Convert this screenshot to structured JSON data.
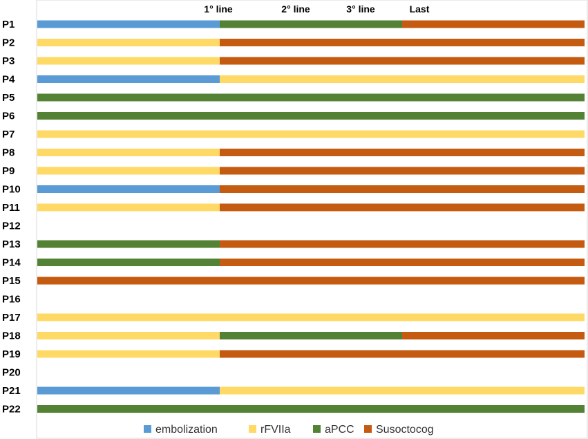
{
  "chart_data": {
    "type": "bar",
    "orientation": "horizontal",
    "stacked": true,
    "line_headers": [
      "1° line",
      "2° line",
      "3° line",
      "Last"
    ],
    "categories": [
      "P1",
      "P2",
      "P3",
      "P4",
      "P5",
      "P6",
      "P7",
      "P8",
      "P9",
      "P10",
      "P11",
      "P12",
      "P13",
      "P14",
      "P15",
      "P16",
      "P17",
      "P18",
      "P19",
      "P20",
      "P21",
      "P22"
    ],
    "treatments": [
      {
        "key": "embolization",
        "name": "embolization",
        "color": "#5b9bd5"
      },
      {
        "key": "rFVIIa",
        "name": "rFVIIa",
        "color": "#ffd966"
      },
      {
        "key": "aPCC",
        "name": "aPCC",
        "color": "#548235"
      },
      {
        "key": "Susoctocog",
        "name": "Susoctocog",
        "color": "#c55a11"
      }
    ],
    "lines_total": 3,
    "rows": [
      {
        "category": "P1",
        "segments": [
          {
            "treatment": "embolization",
            "lines": 1
          },
          {
            "treatment": "aPCC",
            "lines": 1
          },
          {
            "treatment": "Susoctocog",
            "lines": 1
          }
        ]
      },
      {
        "category": "P2",
        "segments": [
          {
            "treatment": "rFVIIa",
            "lines": 1
          },
          {
            "treatment": "Susoctocog",
            "lines": 2
          }
        ]
      },
      {
        "category": "P3",
        "segments": [
          {
            "treatment": "rFVIIa",
            "lines": 1
          },
          {
            "treatment": "Susoctocog",
            "lines": 2
          }
        ]
      },
      {
        "category": "P4",
        "segments": [
          {
            "treatment": "embolization",
            "lines": 1
          },
          {
            "treatment": "rFVIIa",
            "lines": 2
          }
        ]
      },
      {
        "category": "P5",
        "segments": [
          {
            "treatment": "aPCC",
            "lines": 3
          }
        ]
      },
      {
        "category": "P6",
        "segments": [
          {
            "treatment": "aPCC",
            "lines": 3
          }
        ]
      },
      {
        "category": "P7",
        "segments": [
          {
            "treatment": "rFVIIa",
            "lines": 3
          }
        ]
      },
      {
        "category": "P8",
        "segments": [
          {
            "treatment": "rFVIIa",
            "lines": 1
          },
          {
            "treatment": "Susoctocog",
            "lines": 2
          }
        ]
      },
      {
        "category": "P9",
        "segments": [
          {
            "treatment": "rFVIIa",
            "lines": 1
          },
          {
            "treatment": "Susoctocog",
            "lines": 2
          }
        ]
      },
      {
        "category": "P10",
        "segments": [
          {
            "treatment": "embolization",
            "lines": 1
          },
          {
            "treatment": "Susoctocog",
            "lines": 2
          }
        ]
      },
      {
        "category": "P11",
        "segments": [
          {
            "treatment": "rFVIIa",
            "lines": 1
          },
          {
            "treatment": "Susoctocog",
            "lines": 2
          }
        ]
      },
      {
        "category": "P12",
        "segments": []
      },
      {
        "category": "P13",
        "segments": [
          {
            "treatment": "aPCC",
            "lines": 1
          },
          {
            "treatment": "Susoctocog",
            "lines": 2
          }
        ]
      },
      {
        "category": "P14",
        "segments": [
          {
            "treatment": "aPCC",
            "lines": 1
          },
          {
            "treatment": "Susoctocog",
            "lines": 2
          }
        ]
      },
      {
        "category": "P15",
        "segments": [
          {
            "treatment": "Susoctocog",
            "lines": 3
          }
        ]
      },
      {
        "category": "P16",
        "segments": []
      },
      {
        "category": "P17",
        "segments": [
          {
            "treatment": "rFVIIa",
            "lines": 3
          }
        ]
      },
      {
        "category": "P18",
        "segments": [
          {
            "treatment": "rFVIIa",
            "lines": 1
          },
          {
            "treatment": "aPCC",
            "lines": 1
          },
          {
            "treatment": "Susoctocog",
            "lines": 1
          }
        ]
      },
      {
        "category": "P19",
        "segments": [
          {
            "treatment": "rFVIIa",
            "lines": 1
          },
          {
            "treatment": "Susoctocog",
            "lines": 2
          }
        ]
      },
      {
        "category": "P20",
        "segments": []
      },
      {
        "category": "P21",
        "segments": [
          {
            "treatment": "embolization",
            "lines": 1
          },
          {
            "treatment": "rFVIIa",
            "lines": 2
          }
        ]
      },
      {
        "category": "P22",
        "segments": [
          {
            "treatment": "aPCC",
            "lines": 3
          }
        ]
      }
    ],
    "legend": {
      "position": "bottom",
      "entries": [
        "embolization",
        "rFVIIa",
        "aPCC",
        "Susoctocog"
      ]
    },
    "grid": false,
    "title": "",
    "xlabel": "",
    "ylabel": ""
  }
}
